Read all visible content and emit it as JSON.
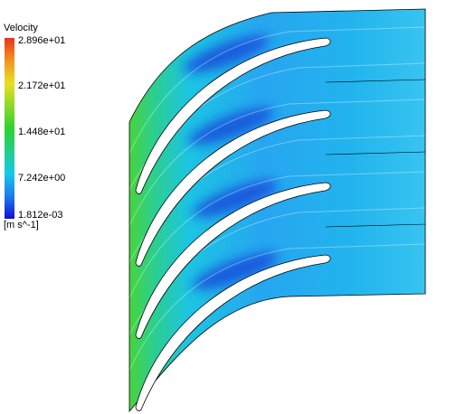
{
  "legend": {
    "title": "Velocity",
    "labels": [
      "2.896e+01",
      "2.172e+01",
      "1.448e+01",
      "7.242e+00",
      "1.812e-03"
    ],
    "units": "[m s^-1]"
  }
}
